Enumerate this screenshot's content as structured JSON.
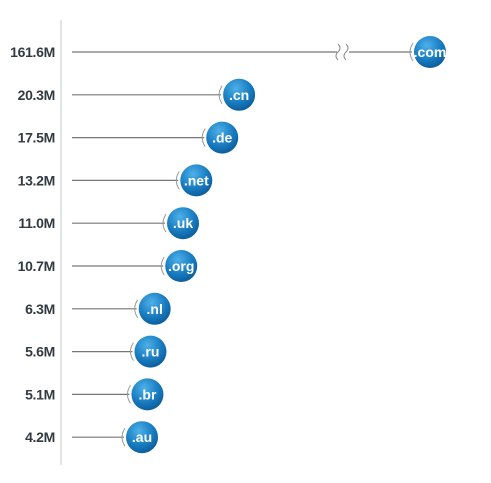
{
  "chart_data": {
    "type": "bar",
    "orientation": "horizontal",
    "title": "",
    "xlabel": "",
    "ylabel": "",
    "axis_break": true,
    "categories": [
      ".com",
      ".cn",
      ".de",
      ".net",
      ".uk",
      ".org",
      ".nl",
      ".ru",
      ".br",
      ".au"
    ],
    "values": [
      161.6,
      20.3,
      17.5,
      13.2,
      11.0,
      10.7,
      6.3,
      5.6,
      5.1,
      4.2
    ],
    "value_labels": [
      "161.6M",
      "20.3M",
      "17.5M",
      "13.2M",
      "11.0M",
      "10.7M",
      "6.3M",
      "5.6M",
      "5.1M",
      "4.2M"
    ],
    "unit": "M",
    "colors": {
      "bubble": "#1a7fc4",
      "bubble_highlight": "#4fb0e8",
      "line": "#777777",
      "axis": "#c8c8c8",
      "label": "#333a40"
    }
  }
}
